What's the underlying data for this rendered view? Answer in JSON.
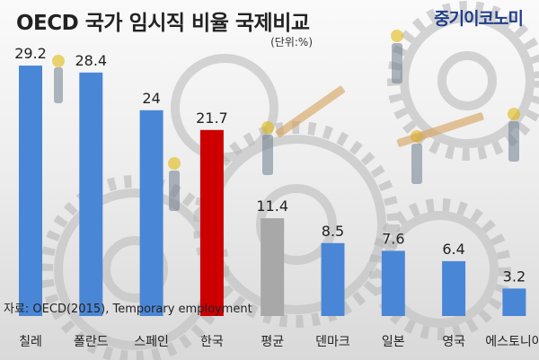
{
  "header": {
    "title": "OECD 국가 임시직 비율 국제비교",
    "brand": "중기이코노미",
    "unit": "(단위:%)"
  },
  "footer": {
    "source": "자료: OECD(2015), Temporary employment"
  },
  "colors": {
    "default_bar": "#4a86d6",
    "highlight_bar": "#cc0000",
    "average_bar": "#a8a8a8"
  },
  "chart_data": {
    "type": "bar",
    "title": "OECD 국가 임시직 비율 국제비교",
    "xlabel": "",
    "ylabel": "",
    "ylim": [
      0,
      30
    ],
    "grid": false,
    "categories": [
      "칠레",
      "폴란드",
      "스페인",
      "한국",
      "평균",
      "덴마크",
      "일본",
      "영국",
      "에스토니아"
    ],
    "values": [
      29.2,
      28.4,
      24,
      21.7,
      11.4,
      8.5,
      7.6,
      6.4,
      3.2
    ],
    "value_labels": [
      "29.2",
      "28.4",
      "24",
      "21.7",
      "11.4",
      "8.5",
      "7.6",
      "6.4",
      "3.2"
    ],
    "highlight": "한국",
    "average": "평균"
  }
}
